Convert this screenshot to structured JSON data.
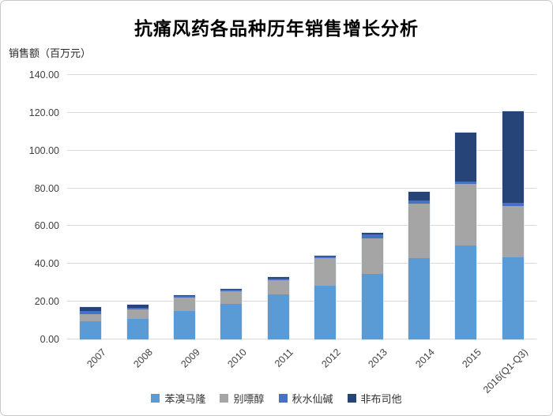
{
  "frame": {
    "background": "#ffffff",
    "border_color": "#c9c9c9"
  },
  "chart_data": {
    "type": "bar",
    "stacked": true,
    "title": "抗痛风药各品种历年销售增长分析",
    "ylabel": "销售额（百万元）",
    "xlabel": "",
    "categories": [
      "2007",
      "2008",
      "2009",
      "2010",
      "2011",
      "2012",
      "2013",
      "2014",
      "2015",
      "2016(Q1-Q3)"
    ],
    "series": [
      {
        "name": "苯溴马隆",
        "color": "#5B9BD5",
        "values": [
          9.6,
          10.9,
          15.1,
          18.8,
          23.8,
          28.5,
          34.7,
          43.1,
          49.9,
          43.4
        ]
      },
      {
        "name": "别嘌醇",
        "color": "#A5A5A5",
        "values": [
          3.6,
          5.0,
          6.9,
          6.7,
          7.5,
          14.6,
          18.9,
          28.9,
          32.5,
          27.3
        ]
      },
      {
        "name": "秋水仙碱",
        "color": "#4472C4",
        "values": [
          1.7,
          0.8,
          1.0,
          1.0,
          0.9,
          1.0,
          2.1,
          1.5,
          1.3,
          1.7
        ]
      },
      {
        "name": "非布司他",
        "color": "#264478",
        "values": [
          2.1,
          1.7,
          0.4,
          0.3,
          0.9,
          0.3,
          0.8,
          4.7,
          25.6,
          48.5
        ]
      }
    ],
    "ylim": [
      0,
      140
    ],
    "ytick_step": 20,
    "ytick_labels": [
      "0.00",
      "20.00",
      "40.00",
      "60.00",
      "80.00",
      "100.00",
      "120.00",
      "140.00"
    ],
    "grid": true,
    "gridline_color": "#d9d9d9",
    "legend_position": "bottom"
  }
}
